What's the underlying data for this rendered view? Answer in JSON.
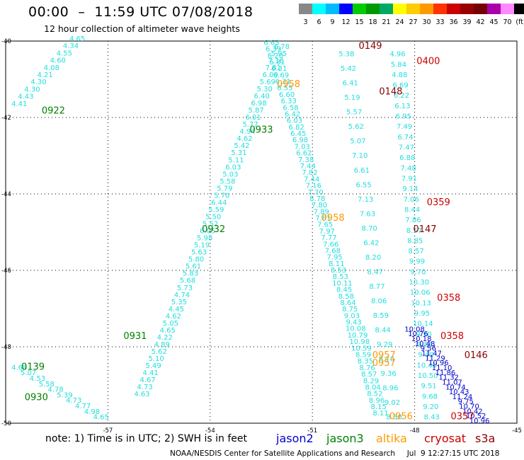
{
  "header": {
    "title": "00:00  –  11:59 UTC 07/08/2018",
    "subtitle": "12 hour collection of altimeter wave heights"
  },
  "footer": {
    "note": "note:  1) Time is in UTC;  2) SWH is in feet",
    "credit": "NOAA/NESDIS Center for Satellite Applications and Research",
    "timestamp": "Jul  9 12:27:15 UTC 2018"
  },
  "colors": {
    "jason2": "#0000cc",
    "jason3": "#008000",
    "altika": "#ff9900",
    "cryosat": "#cc0000",
    "s3a": "#8b0000",
    "track": "#22dddd"
  },
  "legend": {
    "satellites": [
      {
        "name": "jason2",
        "color": "#0000cc"
      },
      {
        "name": "jason3",
        "color": "#008000"
      },
      {
        "name": "altika",
        "color": "#ff9900"
      },
      {
        "name": "cryosat",
        "color": "#cc0000"
      },
      {
        "name": "s3a",
        "color": "#8b0000"
      }
    ],
    "colorbar": {
      "labels": [
        "3",
        "6",
        "9",
        "12",
        "15",
        "18",
        "21",
        "24",
        "27",
        "30",
        "33",
        "36",
        "39",
        "42",
        "45",
        "70",
        "(ft)"
      ],
      "colors": [
        "#888888",
        "#00ffff",
        "#00bbff",
        "#0000ff",
        "#00cc00",
        "#009900",
        "#00aa66",
        "#ffff00",
        "#ffcc00",
        "#ff9900",
        "#ff3300",
        "#cc0000",
        "#990000",
        "#770000",
        "#aa00aa",
        "#ff88ff",
        "#000000"
      ]
    }
  },
  "chart_data": {
    "type": "scatter",
    "title": "00:00 – 11:59 UTC 07/08/2018",
    "subtitle": "12 hour collection of altimeter wave heights",
    "xlim": [
      -60,
      -45
    ],
    "ylim": [
      -50,
      -40
    ],
    "xticks": [
      "-57",
      "-54",
      "-51",
      "-48",
      "-45"
    ],
    "yticks": [
      "-40",
      "-42",
      "-44",
      "-46",
      "-48",
      "-50"
    ],
    "grid": true,
    "units": "ft",
    "tracks": [
      {
        "name": "track-0922",
        "color": "#22dddd",
        "start": [
          -57.9,
          -40.0
        ],
        "end": [
          -59.6,
          -41.7
        ],
        "values": [
          "4.65",
          "4.34",
          "4.55",
          "4.60",
          "4.08",
          "4.21",
          "4.30",
          "4.30",
          "4.43",
          "4.41"
        ]
      },
      {
        "name": "track-0932",
        "color": "#22dddd",
        "start": [
          -51.9,
          -40.2
        ],
        "end": [
          -56.0,
          -49.3
        ],
        "values": [
          "6.78",
          "5.95",
          "7.16",
          "7.81",
          "6.09",
          "5.69",
          "5.30",
          "6.40",
          "6.98",
          "5.87",
          "6.01",
          "5.77",
          "4.94",
          "4.62",
          "5.42",
          "5.31",
          "5.11",
          "6.03",
          "5.03",
          "5.58",
          "5.79",
          "5.70",
          "6.44",
          "5.59",
          "5.50",
          "5.52",
          "6.05",
          "5.98",
          "5.19",
          "5.63",
          "5.80",
          "5.61",
          "5.83",
          "5.68",
          "5.73",
          "4.74",
          "5.35",
          "4.45",
          "4.62",
          "5.05",
          "4.65",
          "4.22",
          "4.89",
          "5.62",
          "5.10",
          "5.49",
          "4.41",
          "4.67",
          "4.73",
          "4.63"
        ]
      },
      {
        "name": "track-0930",
        "color": "#22dddd",
        "start": [
          -59.6,
          -48.6
        ],
        "end": [
          -57.2,
          -49.9
        ],
        "values": [
          "4.68",
          "5.07",
          "4.53",
          "5.58",
          "4.78",
          "5.39",
          "4.73",
          "4.77",
          "4.98",
          "4.65"
        ]
      },
      {
        "name": "track-0933",
        "color": "#22dddd",
        "start": [
          -52.2,
          -40.1
        ],
        "end": [
          -49.0,
          -49.8
        ],
        "values": [
          "6.63",
          "6.39",
          "6.20",
          "6.81",
          "6.31",
          "6.69",
          "6.31",
          "6.55",
          "6.60",
          "6.33",
          "6.58",
          "6.42",
          "6.03",
          "6.82",
          "6.45",
          "6.98",
          "7.03",
          "6.62",
          "7.38",
          "7.44",
          "7.82",
          "7.44",
          "7.16",
          "7.70",
          "8.78",
          "7.80",
          "7.89",
          "7.81",
          "7.65",
          "7.97",
          "7.77",
          "7.66",
          "7.68",
          "7.95",
          "8.11",
          "8.53",
          "8.53",
          "10.11",
          "8.45",
          "8.58",
          "8.64",
          "8.75",
          "9.03",
          "9.43",
          "10.08",
          "10.79",
          "10.98",
          "10.59",
          "8.59",
          "8.35",
          "8.76",
          "8.57",
          "8.29",
          "8.04",
          "8.52",
          "8.96",
          "8.15",
          "8.11"
        ]
      },
      {
        "name": "track-cryosat",
        "color": "#22dddd",
        "start": [
          -48.5,
          -40.4
        ],
        "end": [
          -47.5,
          -49.9
        ],
        "values": [
          "4.96",
          "5.84",
          "4.88",
          "6.69",
          "6.22",
          "6.13",
          "6.95",
          "7.49",
          "6.74",
          "7.47",
          "6.88",
          "7.48",
          "7.91",
          "9.14",
          "7.06",
          "8.44",
          "7.86",
          "8.57",
          "8.85",
          "8.57",
          "9.99",
          "9.70",
          "10.30",
          "10.06",
          "10.13",
          "9.95",
          "10.14",
          "9.50",
          "9.86",
          "9.40",
          "10.40",
          "10.50",
          "9.51",
          "9.68",
          "9.20",
          "8.43"
        ]
      },
      {
        "name": "track-s3a",
        "color": "#22dddd",
        "start": [
          -50.0,
          -40.4
        ],
        "end": [
          -48.6,
          -49.9
        ],
        "values": [
          "5.38",
          "5.42",
          "6.41",
          "5.19",
          "5.57",
          "5.62",
          "5.07",
          "7.10",
          "6.61",
          "6.55",
          "7.13",
          "7.63",
          "8.70",
          "6.42",
          "8.20",
          "8.47",
          "8.77",
          "8.06",
          "8.59",
          "8.44",
          "9.29",
          "8.10",
          "9.36",
          "8.96",
          "9.02",
          "8.50"
        ]
      },
      {
        "name": "track-jason2",
        "color": "#0000cc",
        "start": [
          -48.0,
          -47.6
        ],
        "end": [
          -46.1,
          -50.0
        ],
        "values": [
          "10.08",
          "10.76",
          "10.18",
          "10.48",
          "9.56",
          "11.47",
          "11.29",
          "10.96",
          "11.10",
          "11.86",
          "11.32",
          "11.07",
          "10.74",
          "10.43",
          "11.24",
          "9.75",
          "10.70",
          "10.42",
          "10.52",
          "10.96"
        ]
      }
    ],
    "passes": [
      {
        "label": "0922",
        "satellite": "jason3",
        "x": -58.6,
        "y": -41.9
      },
      {
        "label": "0932",
        "satellite": "jason3",
        "x": -53.9,
        "y": -45.0
      },
      {
        "label": "0931",
        "satellite": "jason3",
        "x": -56.2,
        "y": -47.8
      },
      {
        "label": "0139",
        "satellite": "jason3",
        "x": -59.2,
        "y": -48.6
      },
      {
        "label": "0930",
        "satellite": "jason3",
        "x": -59.1,
        "y": -49.4
      },
      {
        "label": "0933",
        "satellite": "jason3",
        "x": -52.5,
        "y": -42.4
      },
      {
        "label": "0958",
        "satellite": "altika",
        "x": -51.7,
        "y": -41.2
      },
      {
        "label": "0958",
        "satellite": "altika",
        "x": -50.4,
        "y": -44.7
      },
      {
        "label": "0957",
        "satellite": "altika",
        "x": -48.9,
        "y": -48.3
      },
      {
        "label": "0957",
        "satellite": "altika",
        "x": -48.9,
        "y": -48.5
      },
      {
        "label": "0956",
        "satellite": "altika",
        "x": -48.4,
        "y": -49.9
      },
      {
        "label": "0149",
        "satellite": "s3a",
        "x": -49.3,
        "y": -40.2
      },
      {
        "label": "0148",
        "satellite": "s3a",
        "x": -48.7,
        "y": -41.4
      },
      {
        "label": "0147",
        "satellite": "s3a",
        "x": -47.7,
        "y": -45.0
      },
      {
        "label": "0146",
        "satellite": "s3a",
        "x": -46.2,
        "y": -48.3
      },
      {
        "label": "0400",
        "satellite": "cryosat",
        "x": -47.6,
        "y": -40.6
      },
      {
        "label": "0359",
        "satellite": "cryosat",
        "x": -47.3,
        "y": -44.3
      },
      {
        "label": "0358",
        "satellite": "cryosat",
        "x": -47.0,
        "y": -46.8
      },
      {
        "label": "0358",
        "satellite": "cryosat",
        "x": -46.9,
        "y": -47.8
      },
      {
        "label": "0357",
        "satellite": "cryosat",
        "x": -46.6,
        "y": -49.9
      }
    ]
  }
}
